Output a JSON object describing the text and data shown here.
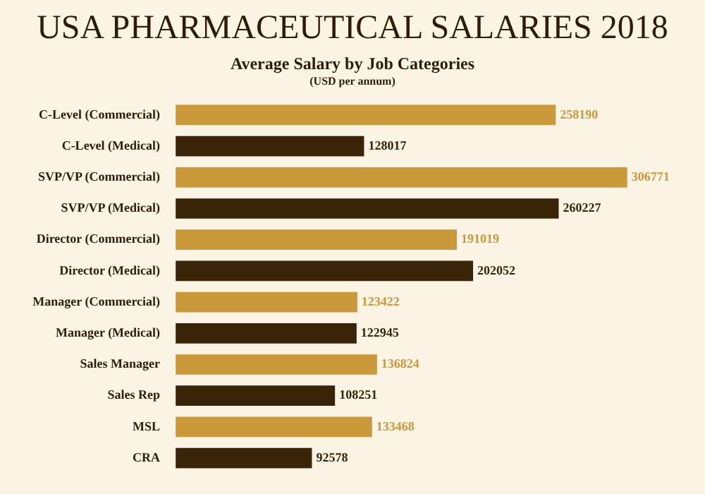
{
  "chart_data": {
    "type": "bar",
    "orientation": "horizontal",
    "title": "USA PHARMACEUTICAL SALARIES 2018",
    "subtitle": "Average Salary by Job Categories",
    "annotations": [
      "(USD per annum)"
    ],
    "categories": [
      "C-Level (Commercial)",
      "C-Level (Medical)",
      "SVP/VP (Commercial)",
      "SVP/VP (Medical)",
      "Director (Commercial)",
      "Director (Medical)",
      "Manager (Commercial)",
      "Manager (Medical)",
      "Sales Manager",
      "Sales Rep",
      "MSL",
      "CRA"
    ],
    "values": [
      258190,
      128017,
      306771,
      260227,
      191019,
      202052,
      123422,
      122945,
      136824,
      108251,
      133468,
      92578
    ],
    "colors": [
      "#c9993a",
      "#3a2408",
      "#c9993a",
      "#3a2408",
      "#c9993a",
      "#3a2408",
      "#c9993a",
      "#3a2408",
      "#c9993a",
      "#3a2408",
      "#c9993a",
      "#3a2408"
    ],
    "data_labels": true,
    "legend": false
  }
}
